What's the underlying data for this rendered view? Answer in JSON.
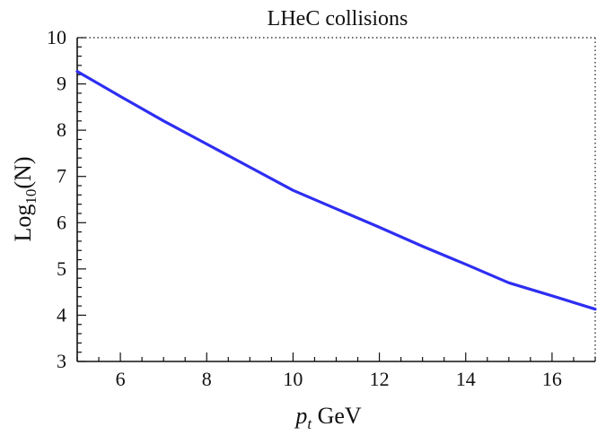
{
  "chart_data": {
    "type": "line",
    "title": "LHeC collisions",
    "xlabel": {
      "var": "p",
      "sub": "t",
      "unit": " GeV"
    },
    "ylabel": {
      "base": "Log",
      "sub": "10",
      "arg": "(N)"
    },
    "xlim": [
      5,
      17
    ],
    "ylim": [
      3,
      10
    ],
    "x_ticks": [
      6,
      8,
      10,
      12,
      14,
      16
    ],
    "y_ticks": [
      3,
      4,
      5,
      6,
      7,
      8,
      9,
      10
    ],
    "grid": false,
    "line_color": "#2e2ef2",
    "series": [
      {
        "x": [
          5,
          6,
          7,
          8,
          9,
          10,
          11,
          12,
          13,
          14,
          15,
          16,
          17
        ],
        "y": [
          9.27,
          8.73,
          8.2,
          7.7,
          7.2,
          6.7,
          6.3,
          5.9,
          5.49,
          5.1,
          4.7,
          4.42,
          4.13
        ]
      }
    ]
  }
}
